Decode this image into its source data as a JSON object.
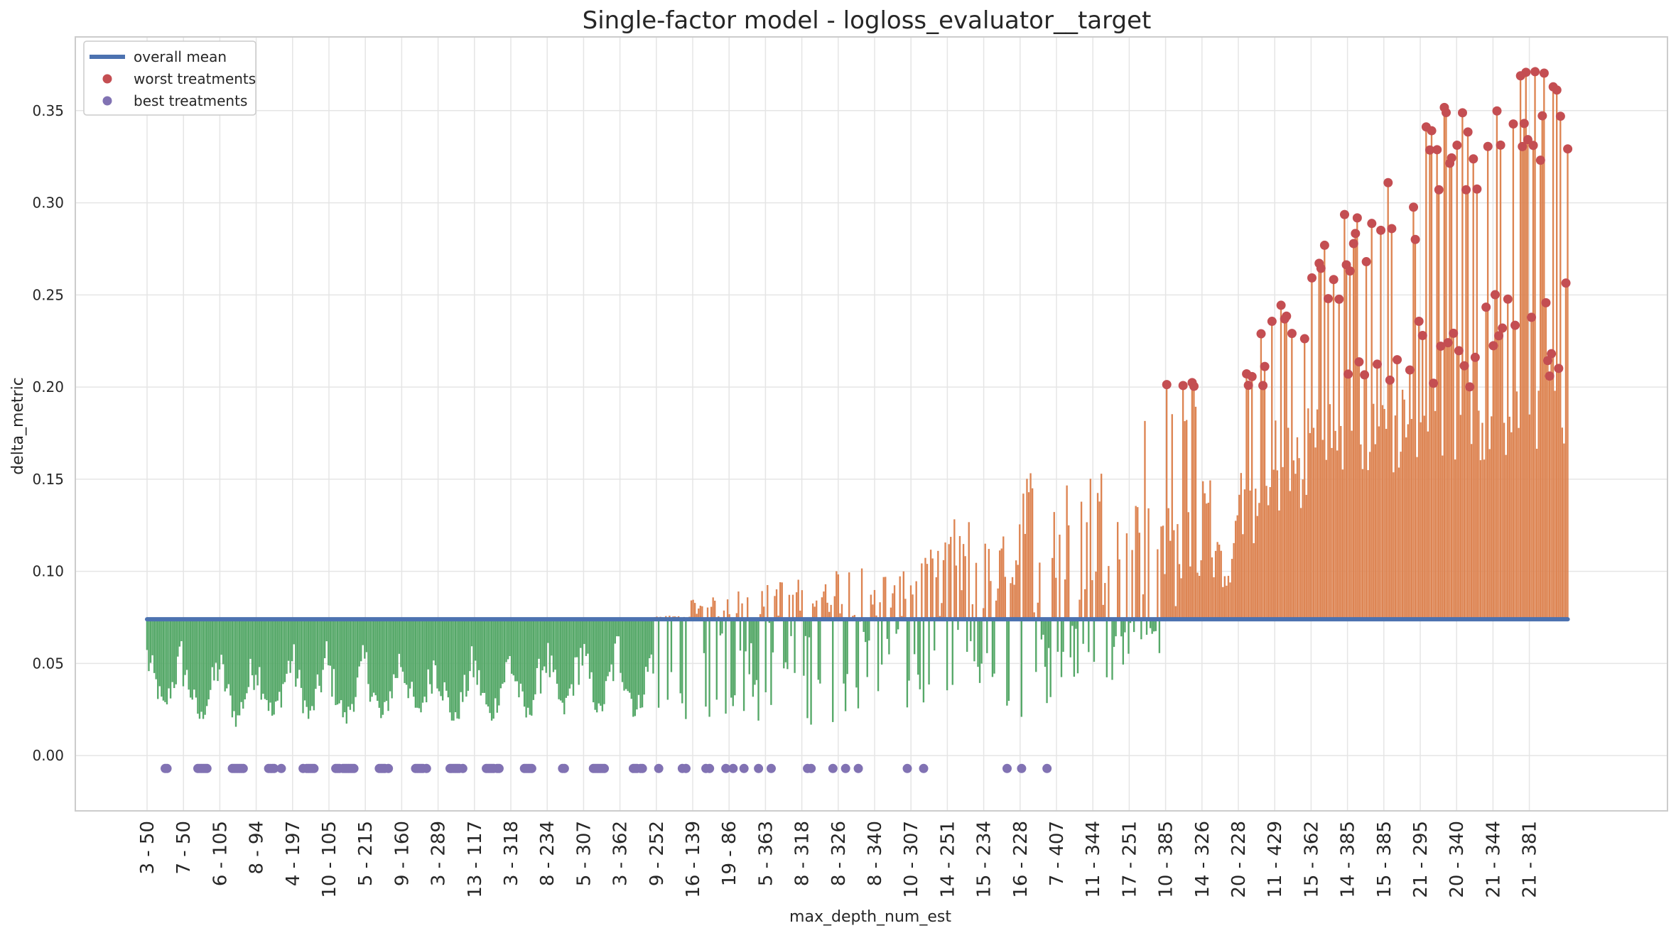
{
  "chart_data": {
    "type": "bar",
    "title": "Single-factor model - logloss_evaluator__target",
    "xlabel": "max_depth_num_est",
    "ylabel": "delta_metric",
    "ylim": [
      -0.03,
      0.39
    ],
    "yticks": [
      "0.00",
      "0.05",
      "0.10",
      "0.15",
      "0.20",
      "0.25",
      "0.30",
      "0.35"
    ],
    "ytick_values": [
      0.0,
      0.05,
      0.1,
      0.15,
      0.2,
      0.25,
      0.3,
      0.35
    ],
    "xtick_labels": [
      "3 - 50",
      "7 - 50",
      "6 - 105",
      "8 - 94",
      "4 - 197",
      "10 - 105",
      "5 - 215",
      "9 - 160",
      "3 - 289",
      "13 - 117",
      "3 - 318",
      "8 - 234",
      "5 - 307",
      "3 - 362",
      "9 - 252",
      "16 - 139",
      "19 - 86",
      "5 - 363",
      "8 - 318",
      "8 - 326",
      "8 - 340",
      "10 - 307",
      "14 - 251",
      "15 - 234",
      "16 - 228",
      "7 - 407",
      "11 - 344",
      "17 - 251",
      "10 - 385",
      "14 - 326",
      "20 - 228",
      "11 - 429",
      "15 - 362",
      "14 - 385",
      "15 - 385",
      "21 - 295",
      "20 - 340",
      "21 - 344",
      "21 - 381"
    ],
    "grid": true,
    "legend_position": "top-left",
    "overall_mean": 0.074,
    "colors": {
      "below_mean": "#55a868",
      "above_mean": "#dd8452",
      "mean_line": "#4c72b0",
      "worst": "#c44e52",
      "best": "#8172b3",
      "grid": "#e5e5e5",
      "frame": "#cccccc"
    },
    "legend": [
      {
        "label": "overall mean",
        "kind": "line",
        "color": "#4c72b0"
      },
      {
        "label": "worst treatments",
        "kind": "dot",
        "color": "#c44e52"
      },
      {
        "label": "best treatments",
        "kind": "dot",
        "color": "#8172b3"
      }
    ],
    "best_marker_value": -0.007,
    "groups": [
      {
        "label": "3 - 50",
        "count": 20,
        "base": 0.01,
        "peak": 0.066,
        "mode": "low"
      },
      {
        "label": "7 - 50",
        "count": 20,
        "base": 0.004,
        "peak": 0.06,
        "mode": "low"
      },
      {
        "label": "6 - 105",
        "count": 20,
        "base": 0.002,
        "peak": 0.062,
        "mode": "low"
      },
      {
        "label": "8 - 94",
        "count": 20,
        "base": 0.004,
        "peak": 0.064,
        "mode": "low"
      },
      {
        "label": "4 - 197",
        "count": 20,
        "base": 0.002,
        "peak": 0.066,
        "mode": "low"
      },
      {
        "label": "10 - 105",
        "count": 20,
        "base": 0.003,
        "peak": 0.06,
        "mode": "low"
      },
      {
        "label": "5 - 215",
        "count": 20,
        "base": 0.002,
        "peak": 0.064,
        "mode": "low"
      },
      {
        "label": "9 - 160",
        "count": 20,
        "base": 0.004,
        "peak": 0.066,
        "mode": "low"
      },
      {
        "label": "3 - 289",
        "count": 20,
        "base": 0.002,
        "peak": 0.06,
        "mode": "low"
      },
      {
        "label": "13 - 117",
        "count": 20,
        "base": 0.004,
        "peak": 0.062,
        "mode": "low"
      },
      {
        "label": "3 - 318",
        "count": 20,
        "base": 0.003,
        "peak": 0.066,
        "mode": "low"
      },
      {
        "label": "8 - 234",
        "count": 20,
        "base": 0.006,
        "peak": 0.068,
        "mode": "low"
      },
      {
        "label": "5 - 307",
        "count": 20,
        "base": 0.004,
        "peak": 0.07,
        "mode": "low"
      },
      {
        "label": "3 - 362",
        "count": 20,
        "base": 0.003,
        "peak": 0.072,
        "mode": "low"
      },
      {
        "label": "9 - 252",
        "count": 20,
        "base": 0.006,
        "peak": 0.076,
        "mode": "mid"
      },
      {
        "label": "16 - 139",
        "count": 20,
        "base": 0.004,
        "peak": 0.086,
        "mode": "mid"
      },
      {
        "label": "19 - 86",
        "count": 20,
        "base": 0.002,
        "peak": 0.09,
        "mode": "mid"
      },
      {
        "label": "5 - 363",
        "count": 20,
        "base": 0.01,
        "peak": 0.096,
        "mode": "mid"
      },
      {
        "label": "8 - 318",
        "count": 20,
        "base": 0.002,
        "peak": 0.094,
        "mode": "mid"
      },
      {
        "label": "8 - 326",
        "count": 20,
        "base": 0.004,
        "peak": 0.104,
        "mode": "mid"
      },
      {
        "label": "8 - 340",
        "count": 20,
        "base": 0.003,
        "peak": 0.1,
        "mode": "mid"
      },
      {
        "label": "10 - 307",
        "count": 20,
        "base": 0.01,
        "peak": 0.112,
        "mode": "mid"
      },
      {
        "label": "14 - 251",
        "count": 20,
        "base": 0.006,
        "peak": 0.13,
        "mode": "mid"
      },
      {
        "label": "15 - 234",
        "count": 20,
        "base": 0.01,
        "peak": 0.12,
        "mode": "mid"
      },
      {
        "label": "16 - 228",
        "count": 20,
        "base": 0.006,
        "peak": 0.16,
        "mode": "mid"
      },
      {
        "label": "7 - 407",
        "count": 20,
        "base": 0.02,
        "peak": 0.15,
        "mode": "mid"
      },
      {
        "label": "11 - 344",
        "count": 20,
        "base": 0.03,
        "peak": 0.16,
        "mode": "mid"
      },
      {
        "label": "17 - 251",
        "count": 20,
        "base": 0.05,
        "peak": 0.19,
        "mode": "mid"
      },
      {
        "label": "10 - 385",
        "count": 20,
        "base": 0.08,
        "peak": 0.206,
        "mode": "high"
      },
      {
        "label": "14 - 326",
        "count": 20,
        "base": 0.09,
        "peak": 0.15,
        "mode": "high"
      },
      {
        "label": "20 - 228",
        "count": 20,
        "base": 0.11,
        "peak": 0.23,
        "mode": "high"
      },
      {
        "label": "11 - 429",
        "count": 20,
        "base": 0.13,
        "peak": 0.256,
        "mode": "high"
      },
      {
        "label": "15 - 362",
        "count": 20,
        "base": 0.14,
        "peak": 0.277,
        "mode": "high"
      },
      {
        "label": "14 - 385",
        "count": 20,
        "base": 0.15,
        "peak": 0.297,
        "mode": "high"
      },
      {
        "label": "15 - 385",
        "count": 20,
        "base": 0.15,
        "peak": 0.316,
        "mode": "high"
      },
      {
        "label": "21 - 295",
        "count": 20,
        "base": 0.155,
        "peak": 0.355,
        "mode": "high"
      },
      {
        "label": "20 - 340",
        "count": 20,
        "base": 0.16,
        "peak": 0.351,
        "mode": "high"
      },
      {
        "label": "21 - 344",
        "count": 20,
        "base": 0.16,
        "peak": 0.372,
        "mode": "high"
      },
      {
        "label": "21 - 381",
        "count": 24,
        "base": 0.165,
        "peak": 0.372,
        "mode": "high"
      }
    ]
  }
}
